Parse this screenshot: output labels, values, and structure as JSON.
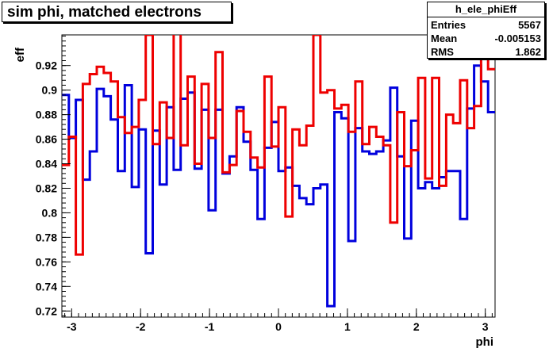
{
  "stats_box": {
    "name": "h_ele_phiEff",
    "rows": [
      {
        "label": "Entries",
        "value": "5567"
      },
      {
        "label": "Mean",
        "value": "-0.005153"
      },
      {
        "label": "RMS",
        "value": "1.862"
      }
    ]
  },
  "chart_data": {
    "type": "line",
    "title": "sim phi, matched electrons",
    "xlabel": "phi",
    "ylabel": "eff",
    "xlim": [
      -3.14159,
      3.14159
    ],
    "ylim": [
      0.715,
      0.945
    ],
    "xticks": [
      -3,
      -2,
      -1,
      0,
      1,
      2,
      3
    ],
    "xtick_labels": [
      "-3",
      "-2",
      "-1",
      "0",
      "1",
      "2",
      "3"
    ],
    "yticks": [
      0.72,
      0.74,
      0.76,
      0.78,
      0.8,
      0.82,
      0.84,
      0.86,
      0.88,
      0.9,
      0.92
    ],
    "ytick_labels": [
      "0.72",
      "0.74",
      "0.76",
      "0.78",
      "0.8",
      "0.82",
      "0.84",
      "0.86",
      "0.88",
      "0.9",
      "0.92"
    ],
    "bins": 62,
    "grid": false,
    "colors": {
      "blue": "#0000dd",
      "red": "#ee0000"
    },
    "series": [
      {
        "color": "#0000dd",
        "values": [
          0.896,
          0.861,
          0.892,
          0.827,
          0.85,
          0.901,
          0.895,
          0.876,
          0.834,
          0.904,
          0.821,
          0.868,
          0.767,
          0.867,
          0.823,
          0.886,
          0.835,
          0.893,
          0.898,
          0.836,
          0.884,
          0.802,
          0.884,
          0.832,
          0.846,
          0.886,
          0.858,
          0.835,
          0.795,
          0.853,
          0.874,
          0.834,
          0.837,
          0.822,
          0.812,
          0.807,
          0.82,
          0.823,
          0.724,
          0.882,
          0.877,
          0.777,
          0.869,
          0.85,
          0.848,
          0.85,
          0.859,
          0.902,
          0.846,
          0.779,
          0.875,
          0.82,
          0.825,
          0.82,
          0.829,
          0.834,
          0.834,
          0.795,
          0.885,
          0.92,
          0.907,
          0.882
        ]
      },
      {
        "color": "#ee0000",
        "values": [
          0.839,
          0.862,
          0.766,
          0.905,
          0.913,
          0.919,
          0.914,
          0.907,
          0.878,
          0.865,
          0.87,
          0.892,
          0.945,
          0.856,
          0.89,
          0.861,
          0.946,
          0.855,
          0.911,
          0.84,
          0.905,
          0.861,
          0.931,
          0.833,
          0.839,
          0.883,
          0.866,
          0.845,
          0.837,
          0.911,
          0.854,
          0.886,
          0.797,
          0.868,
          0.855,
          0.871,
          0.945,
          0.898,
          0.9,
          0.885,
          0.888,
          0.866,
          0.907,
          0.856,
          0.87,
          0.862,
          0.855,
          0.792,
          0.882,
          0.838,
          0.851,
          0.91,
          0.828,
          0.91,
          0.822,
          0.88,
          0.873,
          0.908,
          0.869,
          0.887,
          0.936,
          0.917
        ]
      }
    ]
  }
}
